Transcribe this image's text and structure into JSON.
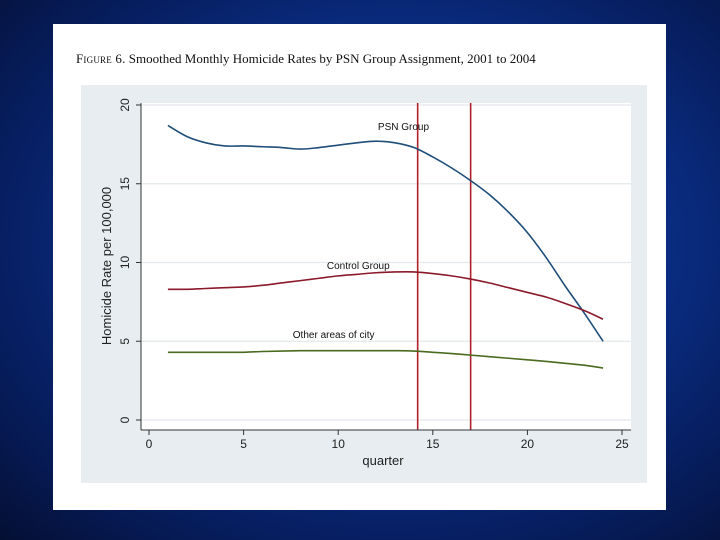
{
  "figure": {
    "label": "Figure 6.",
    "caption": "Smoothed Monthly Homicide Rates by PSN Group Assignment, 2001 to 2004"
  },
  "chart_data": {
    "type": "line",
    "title": "Figure 6. Smoothed Monthly Homicide Rates by PSN Group Assignment, 2001 to 2004",
    "xlabel": "quarter",
    "ylabel": "Homicide Rate per 100,000",
    "xlim": [
      0,
      25
    ],
    "ylim": [
      0,
      20
    ],
    "x_ticks": [
      0,
      5,
      10,
      15,
      20,
      25
    ],
    "y_ticks": [
      0,
      5,
      10,
      15,
      20
    ],
    "grid": "horizontal",
    "legend": "none",
    "vertical_lines": [
      {
        "x": 14.2,
        "color": "#b0202a"
      },
      {
        "x": 17.0,
        "color": "#b0202a"
      }
    ],
    "series": [
      {
        "name": "PSN Group",
        "color": "#1f4e79",
        "x": [
          1,
          2,
          3,
          4,
          5,
          6,
          7,
          8,
          9,
          10,
          11,
          12,
          13,
          14,
          15,
          16,
          17,
          18,
          19,
          20,
          21,
          22,
          23,
          24
        ],
        "values": [
          18.7,
          18.0,
          17.6,
          17.4,
          17.4,
          17.35,
          17.3,
          17.2,
          17.3,
          17.45,
          17.6,
          17.7,
          17.6,
          17.3,
          16.7,
          16.0,
          15.2,
          14.3,
          13.2,
          11.9,
          10.3,
          8.5,
          6.8,
          5.0
        ],
        "label_position": {
          "x": 12.1,
          "y": 18.4
        }
      },
      {
        "name": "Control Group",
        "color": "#8b1a2b",
        "x": [
          1,
          2,
          3,
          4,
          5,
          6,
          7,
          8,
          9,
          10,
          11,
          12,
          13,
          14,
          15,
          16,
          17,
          18,
          19,
          20,
          21,
          22,
          23,
          24
        ],
        "values": [
          8.3,
          8.3,
          8.35,
          8.4,
          8.45,
          8.55,
          8.7,
          8.85,
          9.0,
          9.15,
          9.25,
          9.35,
          9.4,
          9.4,
          9.3,
          9.15,
          8.95,
          8.7,
          8.4,
          8.1,
          7.8,
          7.4,
          6.95,
          6.4
        ],
        "label_position": {
          "x": 9.4,
          "y": 9.6
        }
      },
      {
        "name": "Other areas of city",
        "color": "#4a6b1f",
        "x": [
          1,
          2,
          3,
          4,
          5,
          6,
          7,
          8,
          9,
          10,
          11,
          12,
          13,
          14,
          15,
          16,
          17,
          18,
          19,
          20,
          21,
          22,
          23,
          24
        ],
        "values": [
          4.3,
          4.3,
          4.3,
          4.3,
          4.3,
          4.35,
          4.38,
          4.4,
          4.4,
          4.4,
          4.4,
          4.4,
          4.4,
          4.38,
          4.3,
          4.22,
          4.12,
          4.02,
          3.92,
          3.82,
          3.72,
          3.6,
          3.48,
          3.3
        ],
        "label_position": {
          "x": 7.6,
          "y": 5.2
        }
      }
    ]
  }
}
